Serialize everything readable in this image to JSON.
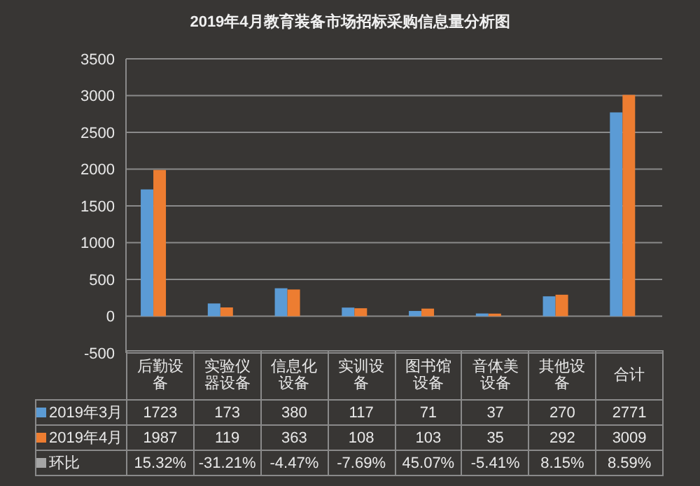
{
  "chart_data": {
    "type": "bar",
    "title": "2019年4月教育装备市场招标采购信息量分析图",
    "categories": [
      "后勤设备",
      "实验仪器设备",
      "信息化设备",
      "实训设备",
      "图书馆设备",
      "音体美设备",
      "其他设备",
      "合计"
    ],
    "series": [
      {
        "name": "2019年3月",
        "color": "#5b9bd5",
        "values": [
          1723,
          173,
          380,
          117,
          71,
          37,
          270,
          2771
        ],
        "value_labels": [
          "1723",
          "173",
          "380",
          "117",
          "71",
          "37",
          "270",
          "2771"
        ]
      },
      {
        "name": "2019年4月",
        "color": "#ed7d31",
        "values": [
          1987,
          119,
          363,
          108,
          103,
          35,
          292,
          3009
        ],
        "value_labels": [
          "1987",
          "119",
          "363",
          "108",
          "103",
          "35",
          "292",
          "3009"
        ]
      },
      {
        "name": "环比",
        "color": "#a5a5a5",
        "values": [
          0.1532,
          -0.3121,
          -0.0447,
          -0.0769,
          0.4507,
          -0.0541,
          0.0815,
          0.0859
        ],
        "value_labels": [
          "15.32%",
          "-31.21%",
          "-4.47%",
          "-7.69%",
          "45.07%",
          "-5.41%",
          "8.15%",
          "8.59%"
        ]
      }
    ],
    "ylim": [
      -500,
      3500
    ],
    "yticks": [
      -500,
      0,
      500,
      1000,
      1500,
      2000,
      2500,
      3000,
      3500
    ],
    "grid": "y",
    "legend": "bottom"
  }
}
